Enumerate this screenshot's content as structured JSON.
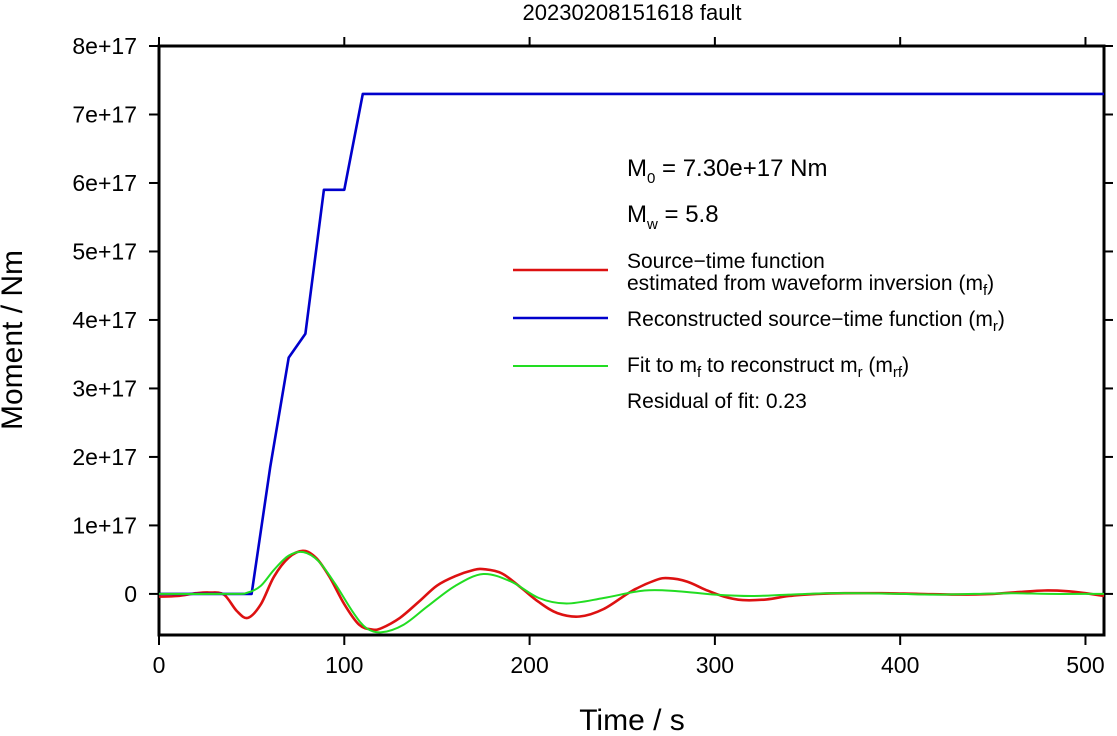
{
  "chart_data": {
    "type": "line",
    "title": "20230208151618 fault",
    "xlabel": "Time / s",
    "ylabel": "Moment / Nm",
    "xlim": [
      0,
      510
    ],
    "ylim": [
      -6e+16,
      8e+17
    ],
    "x_ticks": [
      0,
      100,
      200,
      300,
      400,
      500
    ],
    "x_tick_labels": [
      "0",
      "100",
      "200",
      "300",
      "400",
      "500"
    ],
    "y_ticks": [
      0,
      1e+17,
      2e+17,
      3e+17,
      4e+17,
      5e+17,
      6e+17,
      7e+17,
      8e+17
    ],
    "y_tick_labels": [
      "0",
      "1e+17",
      "2e+17",
      "3e+17",
      "4e+17",
      "5e+17",
      "6e+17",
      "7e+17",
      "8e+17"
    ],
    "grid": false,
    "legend_position": "right",
    "annotations": {
      "m0_main": "M",
      "m0_sub": "0",
      "m0_rest": " = 7.30e+17 Nm",
      "mw_main": "M",
      "mw_sub": "w",
      "mw_rest": " = 5.8",
      "residual": "Residual of fit: 0.23"
    },
    "legend": {
      "red": {
        "line1": "Source−time function",
        "line2": "estimated from waveform inversion (m",
        "line2_sub": "f",
        "line2_end": ")"
      },
      "blue": {
        "text": "Reconstructed source−time function (m",
        "sub": "r",
        "end": ")"
      },
      "green": {
        "text": "Fit to m",
        "sub1": "f",
        "mid": " to reconstruct m",
        "sub2": "r",
        "mid2": " (m",
        "sub3": "rf",
        "end": ")"
      }
    },
    "series": [
      {
        "color": "#dd1111",
        "x": [
          0,
          10,
          20,
          27,
          35,
          42,
          48,
          55,
          62,
          70,
          78,
          85,
          92,
          100,
          108,
          115,
          120,
          130,
          140,
          150,
          160,
          170,
          176,
          185,
          195,
          205,
          215,
          227,
          240,
          255,
          268,
          275,
          285,
          295,
          305,
          315,
          328,
          340,
          355,
          370,
          390,
          410,
          430,
          450,
          465,
          478,
          490,
          500,
          510
        ],
        "y": [
          -4000000000000000.0,
          -3000000000000000.0,
          1000000000000000.0,
          2000000000000000.0,
          -1000000000000000.0,
          -2.5e+16,
          -3.5e+16,
          -1.5e+16,
          2.5e+16,
          5.3e+16,
          6.3e+16,
          5.2e+16,
          2.5e+16,
          -1.5e+16,
          -4.5e+16,
          -5.2e+16,
          -5e+16,
          -3.5e+16,
          -1.2e+16,
          1.2e+16,
          2.6e+16,
          3.5e+16,
          3.6e+16,
          3e+16,
          1e+16,
          -1.2e+16,
          -2.8e+16,
          -3.3e+16,
          -2.2e+16,
          4000000000000000.0,
          2e+16,
          2.3e+16,
          1.8e+16,
          6000000000000000.0,
          -4000000000000000.0,
          -9000000000000000.0,
          -8000000000000000.0,
          -3000000000000000.0,
          0,
          1000000000000000.0,
          1000000000000000.0,
          0,
          -1000000000000000.0,
          0,
          3000000000000000.0,
          5000000000000000.0,
          4000000000000000.0,
          1000000000000000.0,
          -3000000000000000.0
        ]
      },
      {
        "color": "#0000cc",
        "x": [
          0,
          50,
          60,
          70,
          79,
          89,
          100,
          110,
          510
        ],
        "y": [
          0,
          0,
          1.85e+17,
          3.45e+17,
          3.8e+17,
          5.9e+17,
          5.9e+17,
          7.3e+17,
          7.3e+17
        ]
      },
      {
        "color": "#22dd22",
        "x": [
          0,
          40,
          48,
          55,
          62,
          70,
          78,
          86,
          95,
          105,
          112,
          120,
          132,
          145,
          160,
          175,
          190,
          205,
          220,
          240,
          262,
          280,
          300,
          320,
          340,
          360,
          380,
          400,
          420,
          440,
          460,
          480,
          500,
          510
        ],
        "y": [
          0,
          0,
          2000000000000000.0,
          1.2e+16,
          3.5e+16,
          5.6e+16,
          6.1e+16,
          4.8e+16,
          1.5e+16,
          -2.8e+16,
          -5e+16,
          -5.6e+16,
          -4.5e+16,
          -1.8e+16,
          1.2e+16,
          2.9e+16,
          1.8e+16,
          -6000000000000000.0,
          -1.4e+16,
          -6000000000000000.0,
          5000000000000000.0,
          4000000000000000.0,
          -1000000000000000.0,
          -3000000000000000.0,
          -1000000000000000.0,
          1000000000000000.0,
          1000000000000000.0,
          0,
          -1000000000000000.0,
          0,
          1000000000000000.0,
          0,
          0,
          0
        ]
      }
    ]
  }
}
